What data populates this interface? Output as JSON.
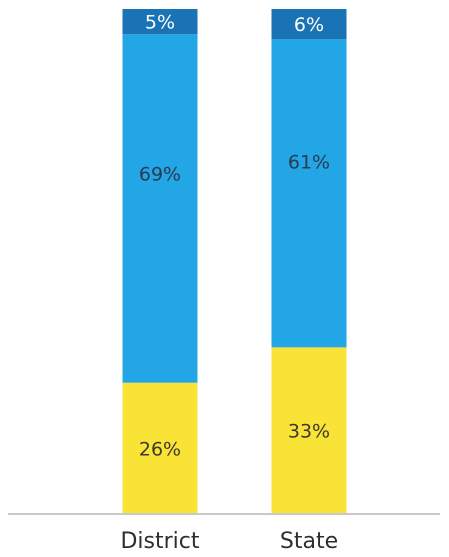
{
  "chart_data": {
    "type": "bar",
    "stacked": true,
    "title": "",
    "xlabel": "",
    "ylabel": "",
    "ylim": [
      0,
      100
    ],
    "grid": false,
    "categories": [
      "District",
      "State"
    ],
    "series": [
      {
        "key": "bottom",
        "color": "#f9e336",
        "text_color": "#3a3a2a",
        "values": [
          26,
          33
        ],
        "labels": [
          "26%",
          "33%"
        ]
      },
      {
        "key": "middle",
        "color": "#22a6e6",
        "text_color": "#2a3a52",
        "values": [
          69,
          61
        ],
        "labels": [
          "69%",
          "61%"
        ]
      },
      {
        "key": "top",
        "color": "#1a73b5",
        "text_color": "#ffffff",
        "values": [
          5,
          6
        ],
        "labels": [
          "5%",
          "6%"
        ]
      }
    ]
  }
}
